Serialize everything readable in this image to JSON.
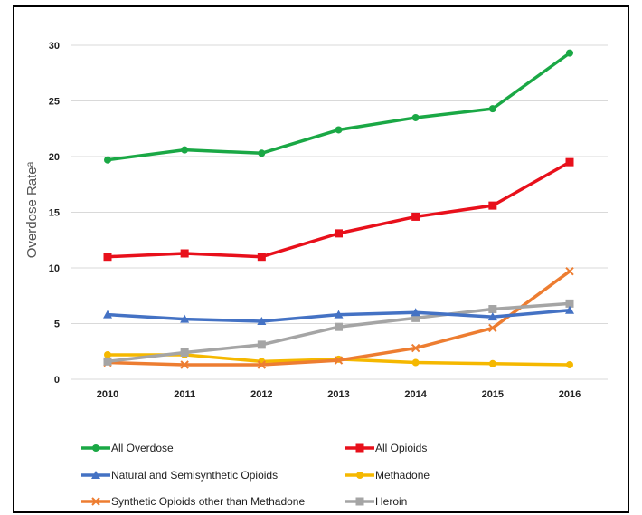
{
  "chart_data": {
    "type": "line",
    "title": "",
    "xlabel": "",
    "ylabel": "Overdose Rateᵃ",
    "x": [
      "2010",
      "2011",
      "2012",
      "2013",
      "2014",
      "2015",
      "2016"
    ],
    "ylim": [
      0,
      30
    ],
    "yticks": [
      "0",
      "5",
      "10",
      "15",
      "20",
      "25",
      "30"
    ],
    "grid": "horizontal",
    "legend_position": "bottom",
    "series": [
      {
        "name": "All Overdose",
        "color": "#1aa845",
        "marker": "circle",
        "values": [
          19.7,
          20.6,
          20.3,
          22.4,
          23.5,
          24.3,
          29.3
        ]
      },
      {
        "name": "All Opioids",
        "color": "#e8101b",
        "marker": "square",
        "values": [
          11.0,
          11.3,
          11.0,
          13.1,
          14.6,
          15.6,
          19.5
        ]
      },
      {
        "name": "Natural and Semisynthetic Opioids",
        "color": "#4472c4",
        "marker": "triangle",
        "values": [
          5.8,
          5.4,
          5.2,
          5.8,
          6.0,
          5.6,
          6.2
        ]
      },
      {
        "name": "Methadone",
        "color": "#f5b800",
        "marker": "circle",
        "values": [
          2.2,
          2.2,
          1.6,
          1.8,
          1.5,
          1.4,
          1.3
        ]
      },
      {
        "name": "Synthetic  Opioids other than Methadone",
        "color": "#ed7d31",
        "marker": "x",
        "values": [
          1.5,
          1.3,
          1.3,
          1.7,
          2.8,
          4.6,
          9.7
        ]
      },
      {
        "name": "Heroin",
        "color": "#a5a5a5",
        "marker": "square",
        "values": [
          1.6,
          2.4,
          3.1,
          4.7,
          5.5,
          6.3,
          6.8
        ]
      }
    ]
  }
}
